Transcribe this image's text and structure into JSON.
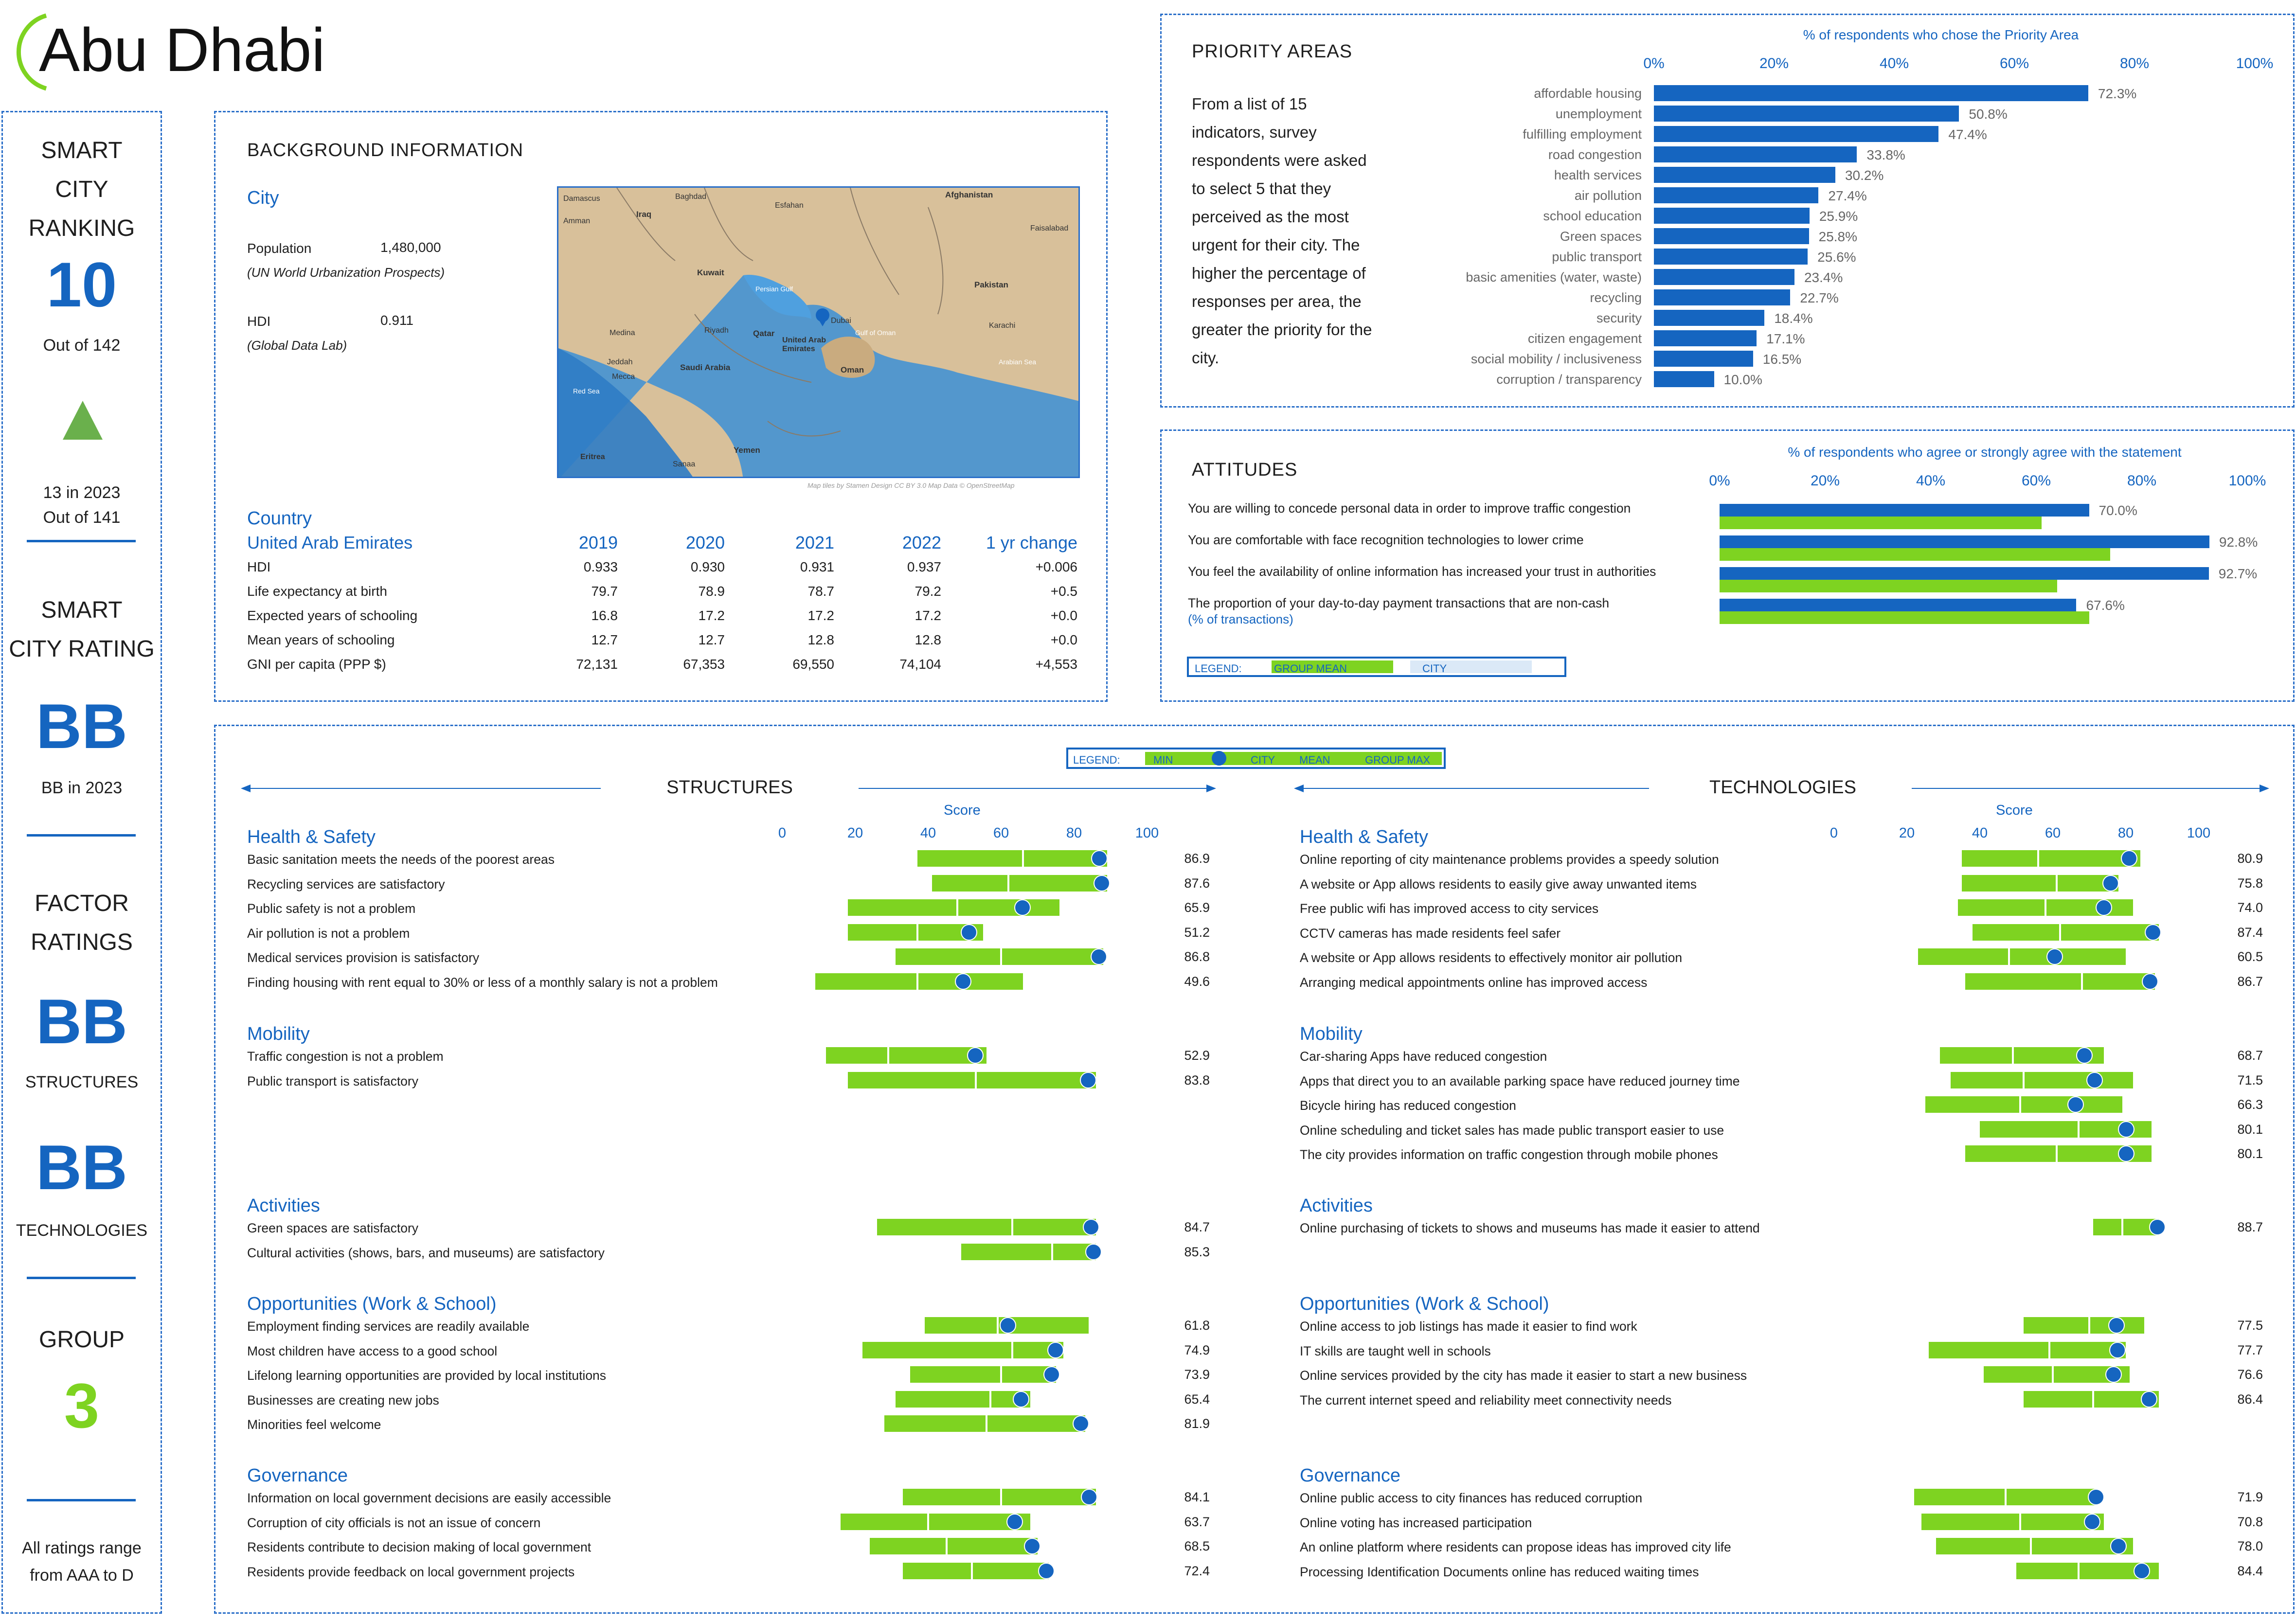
{
  "header": {
    "city": "Abu Dhabi"
  },
  "left": {
    "smart_city_ranking_title": [
      "SMART",
      "CITY",
      "RANKING"
    ],
    "rank": "10",
    "rank_out_of": "Out of 142",
    "prev_rank": "13 in 2023",
    "prev_out_of": "Out of 141",
    "smart_city_rating_title": [
      "SMART",
      "CITY RATING"
    ],
    "rating": "BB",
    "prev_rating": "BB in 2023",
    "factor_ratings_title": [
      "FACTOR",
      "RATINGS"
    ],
    "structures_rating": "BB",
    "structures_label": "STRUCTURES",
    "technologies_rating": "BB",
    "technologies_label": "TECHNOLOGIES",
    "group_title": "GROUP",
    "group": "3",
    "footnote": [
      "All ratings range",
      "from AAA to D"
    ],
    "colors": {
      "trend_up": "#6ab04c",
      "group": "#7ed321"
    }
  },
  "background": {
    "title": "BACKGROUND INFORMATION",
    "city_heading": "City",
    "population_label": "Population",
    "population_value": "1,480,000",
    "population_source": "(UN World Urbanization Prospects)",
    "hdi_label": "HDI",
    "hdi_value": "0.911",
    "hdi_source": "(Global Data Lab)",
    "map_credit": "Map tiles by Stamen Design CC BY 3.0 Map Data © OpenStreetMap",
    "map_labels": [
      "Damascus",
      "Baghdad",
      "Esfahan",
      "Afghanistan",
      "Amman",
      "Iraq",
      "Faisalabad",
      "Kuwait",
      "Pakistan",
      "Persian Gulf",
      "Riyadh",
      "Qatar",
      "Dubai",
      "Karachi",
      "Medina",
      "United Arab Emirates",
      "Gulf of Oman",
      "Jeddah",
      "Mecca",
      "Saudi Arabia",
      "Oman",
      "Arabian Sea",
      "Red Sea",
      "Yemen",
      "Eritrea",
      "Sanaa"
    ],
    "country_heading": "Country",
    "country_name": "United Arab Emirates",
    "years": [
      "2019",
      "2020",
      "2021",
      "2022",
      "1 yr change"
    ],
    "rows": [
      {
        "label": "HDI",
        "values": [
          "0.933",
          "0.930",
          "0.931",
          "0.937",
          "+0.006"
        ]
      },
      {
        "label": "Life expectancy at birth",
        "values": [
          "79.7",
          "78.9",
          "78.7",
          "79.2",
          "+0.5"
        ]
      },
      {
        "label": "Expected years of schooling",
        "values": [
          "16.8",
          "17.2",
          "17.2",
          "17.2",
          "+0.0"
        ]
      },
      {
        "label": "Mean years of schooling",
        "values": [
          "12.7",
          "12.7",
          "12.8",
          "12.8",
          "+0.0"
        ]
      },
      {
        "label": "GNI per capita (PPP $)",
        "values": [
          "72,131",
          "67,353",
          "69,550",
          "74,104",
          "+4,553"
        ]
      }
    ]
  },
  "priority": {
    "title": "PRIORITY AREAS",
    "axis_title": "% of respondents who chose the Priority Area",
    "ticks": [
      "0%",
      "20%",
      "40%",
      "60%",
      "80%",
      "100%"
    ],
    "description": [
      "From a list of 15",
      "indicators, survey",
      "respondents were asked",
      "to select 5 that they",
      "perceived as the most",
      "urgent for their city. The",
      "higher the percentage of",
      "responses per area, the",
      "greater the priority for the",
      "city."
    ]
  },
  "attitudes": {
    "title": "ATTITUDES",
    "axis_title": "% of respondents who agree or strongly agree with the statement",
    "ticks": [
      "0%",
      "20%",
      "40%",
      "60%",
      "80%",
      "100%"
    ],
    "legend_label": "LEGEND:",
    "legend_group": "GROUP MEAN",
    "legend_city": "CITY",
    "sub_note": "(% of transactions)"
  },
  "factors_legend": {
    "label": "LEGEND:",
    "min": "MIN",
    "city": "CITY",
    "mean": "MEAN",
    "max": "GROUP MAX"
  },
  "structures": {
    "title": "STRUCTURES",
    "score_label": "Score",
    "ticks": [
      "0",
      "20",
      "40",
      "60",
      "80",
      "100"
    ]
  },
  "technologies": {
    "title": "TECHNOLOGIES",
    "score_label": "Score",
    "ticks": [
      "0",
      "20",
      "40",
      "60",
      "80",
      "100"
    ]
  },
  "chart_data": [
    {
      "type": "bar",
      "title": "PRIORITY AREAS",
      "xlabel": "% of respondents who chose the Priority Area",
      "xlim": [
        0,
        100
      ],
      "categories": [
        "affordable housing",
        "unemployment",
        "fulfilling employment",
        "road congestion",
        "health services",
        "air pollution",
        "school education",
        "Green spaces",
        "public transport",
        "basic amenities (water, waste)",
        "recycling",
        "security",
        "citizen engagement",
        "social mobility / inclusiveness",
        "corruption / transparency"
      ],
      "values": [
        72.3,
        50.8,
        47.4,
        33.8,
        30.2,
        27.4,
        25.9,
        25.8,
        25.6,
        23.4,
        22.7,
        18.4,
        17.1,
        16.5,
        10.0
      ],
      "labels": [
        "72.3%",
        "50.8%",
        "47.4%",
        "33.8%",
        "30.2%",
        "27.4%",
        "25.9%",
        "25.8%",
        "25.6%",
        "23.4%",
        "22.7%",
        "18.4%",
        "17.1%",
        "16.5%",
        "10.0%"
      ],
      "color": "#1565c0"
    },
    {
      "type": "bar",
      "title": "ATTITUDES",
      "xlabel": "% of respondents who agree or strongly agree with the statement",
      "xlim": [
        0,
        100
      ],
      "categories": [
        "You are willing to concede personal data in order to improve traffic congestion",
        "You are comfortable with face recognition technologies to lower crime",
        "You feel the availability of online information has increased your trust in authorities",
        "The proportion of your day-to-day payment transactions that are non-cash"
      ],
      "series": [
        {
          "name": "CITY",
          "values": [
            70.0,
            92.8,
            92.7,
            67.6
          ],
          "labels": [
            "70.0%",
            "92.8%",
            "92.7%",
            "67.6%"
          ],
          "color": "#1565c0"
        },
        {
          "name": "GROUP MEAN",
          "values": [
            61,
            74,
            64,
            70
          ],
          "color": "#7ed321"
        }
      ]
    },
    {
      "type": "bar",
      "title": "STRUCTURES",
      "xlabel": "Score",
      "xlim": [
        0,
        100
      ],
      "groups": [
        {
          "name": "Health & Safety",
          "items": [
            {
              "label": "Basic sanitation meets the needs of the poorest areas",
              "city": 86.9,
              "min": 37,
              "mean": 66,
              "max": 89
            },
            {
              "label": "Recycling services are satisfactory",
              "city": 87.6,
              "min": 41,
              "mean": 62,
              "max": 89
            },
            {
              "label": "Public safety is not a problem",
              "city": 65.9,
              "min": 18,
              "mean": 48,
              "max": 76
            },
            {
              "label": "Air pollution is not a problem",
              "city": 51.2,
              "min": 18,
              "mean": 37,
              "max": 55
            },
            {
              "label": "Medical services provision is satisfactory",
              "city": 86.8,
              "min": 31,
              "mean": 60,
              "max": 88
            },
            {
              "label": "Finding housing with rent equal to 30% or less of a monthly salary is not a problem",
              "city": 49.6,
              "min": 9,
              "mean": 37,
              "max": 66
            }
          ]
        },
        {
          "name": "Mobility",
          "items": [
            {
              "label": "Traffic congestion is not a problem",
              "city": 52.9,
              "min": 12,
              "mean": 29,
              "max": 56
            },
            {
              "label": "Public transport is satisfactory",
              "city": 83.8,
              "min": 18,
              "mean": 53,
              "max": 86
            }
          ]
        },
        {
          "name": "Activities",
          "items": [
            {
              "label": "Green spaces are satisfactory",
              "city": 84.7,
              "min": 26,
              "mean": 63,
              "max": 86
            },
            {
              "label": "Cultural activities (shows, bars, and museums) are satisfactory",
              "city": 85.3,
              "min": 49,
              "mean": 74,
              "max": 86
            }
          ]
        },
        {
          "name": "Opportunities (Work & School)",
          "items": [
            {
              "label": "Employment finding services are readily available",
              "city": 61.8,
              "min": 39,
              "mean": 59,
              "max": 84
            },
            {
              "label": "Most children have access to a good school",
              "city": 74.9,
              "min": 22,
              "mean": 63,
              "max": 77
            },
            {
              "label": "Lifelong learning opportunities are provided by local institutions",
              "city": 73.9,
              "min": 35,
              "mean": 60,
              "max": 75
            },
            {
              "label": "Businesses are creating new jobs",
              "city": 65.4,
              "min": 31,
              "mean": 57,
              "max": 68
            },
            {
              "label": "Minorities feel welcome",
              "city": 81.9,
              "min": 28,
              "mean": 56,
              "max": 83
            }
          ]
        },
        {
          "name": "Governance",
          "items": [
            {
              "label": "Information on local government decisions are easily accessible",
              "city": 84.1,
              "min": 33,
              "mean": 60,
              "max": 86
            },
            {
              "label": "Corruption of city officials is not an issue of concern",
              "city": 63.7,
              "min": 16,
              "mean": 40,
              "max": 68
            },
            {
              "label": "Residents contribute to decision making of local government",
              "city": 68.5,
              "min": 24,
              "mean": 45,
              "max": 70
            },
            {
              "label": "Residents provide feedback on local government projects",
              "city": 72.4,
              "min": 33,
              "mean": 52,
              "max": 73
            }
          ]
        }
      ]
    },
    {
      "type": "bar",
      "title": "TECHNOLOGIES",
      "xlabel": "Score",
      "xlim": [
        0,
        100
      ],
      "groups": [
        {
          "name": "Health & Safety",
          "items": [
            {
              "label": "Online reporting of city maintenance problems provides a speedy solution",
              "city": 80.9,
              "min": 35,
              "mean": 56,
              "max": 84
            },
            {
              "label": "A website or App allows residents to easily give away unwanted items",
              "city": 75.8,
              "min": 35,
              "mean": 61,
              "max": 78
            },
            {
              "label": "Free public wifi has improved access to city services",
              "city": 74.0,
              "min": 34,
              "mean": 58,
              "max": 82
            },
            {
              "label": "CCTV cameras has made residents feel safer",
              "city": 87.4,
              "min": 38,
              "mean": 62,
              "max": 89
            },
            {
              "label": "A website or App allows residents to effectively monitor air pollution",
              "city": 60.5,
              "min": 23,
              "mean": 48,
              "max": 80
            },
            {
              "label": "Arranging medical appointments online has improved access",
              "city": 86.7,
              "min": 36,
              "mean": 68,
              "max": 88
            }
          ]
        },
        {
          "name": "Mobility",
          "items": [
            {
              "label": "Car-sharing Apps have reduced congestion",
              "city": 68.7,
              "min": 29,
              "mean": 49,
              "max": 74
            },
            {
              "label": "Apps that direct you to an available parking space have reduced journey time",
              "city": 71.5,
              "min": 32,
              "mean": 52,
              "max": 82
            },
            {
              "label": "Bicycle hiring has reduced congestion",
              "city": 66.3,
              "min": 25,
              "mean": 51,
              "max": 79
            },
            {
              "label": "Online scheduling and ticket sales has made public transport easier to use",
              "city": 80.1,
              "min": 40,
              "mean": 67,
              "max": 87
            },
            {
              "label": "The city provides information on traffic congestion through mobile phones",
              "city": 80.1,
              "min": 36,
              "mean": 61,
              "max": 87
            }
          ]
        },
        {
          "name": "Activities",
          "items": [
            {
              "label": "Online purchasing of tickets to shows and museums has made it easier to attend",
              "city": 88.7,
              "min": 71,
              "mean": 79,
              "max": 89
            }
          ]
        },
        {
          "name": "Opportunities (Work & School)",
          "items": [
            {
              "label": "Online access to job listings has made it easier to find work",
              "city": 77.5,
              "min": 52,
              "mean": 70,
              "max": 85
            },
            {
              "label": "IT skills are taught well in schools",
              "city": 77.7,
              "min": 26,
              "mean": 59,
              "max": 80
            },
            {
              "label": "Online services provided by the city has made it easier to start a new business",
              "city": 76.6,
              "min": 41,
              "mean": 60,
              "max": 81
            },
            {
              "label": "The current internet speed and reliability meet connectivity needs",
              "city": 86.4,
              "min": 52,
              "mean": 71,
              "max": 89
            }
          ]
        },
        {
          "name": "Governance",
          "items": [
            {
              "label": "Online public access to city finances has reduced corruption",
              "city": 71.9,
              "min": 22,
              "mean": 47,
              "max": 72
            },
            {
              "label": "Online voting has increased participation",
              "city": 70.8,
              "min": 24,
              "mean": 51,
              "max": 74
            },
            {
              "label": "An online platform where residents can propose ideas has improved city life",
              "city": 78.0,
              "min": 28,
              "mean": 54,
              "max": 82
            },
            {
              "label": "Processing Identification Documents online has reduced waiting times",
              "city": 84.4,
              "min": 50,
              "mean": 67,
              "max": 89
            }
          ]
        }
      ]
    }
  ]
}
